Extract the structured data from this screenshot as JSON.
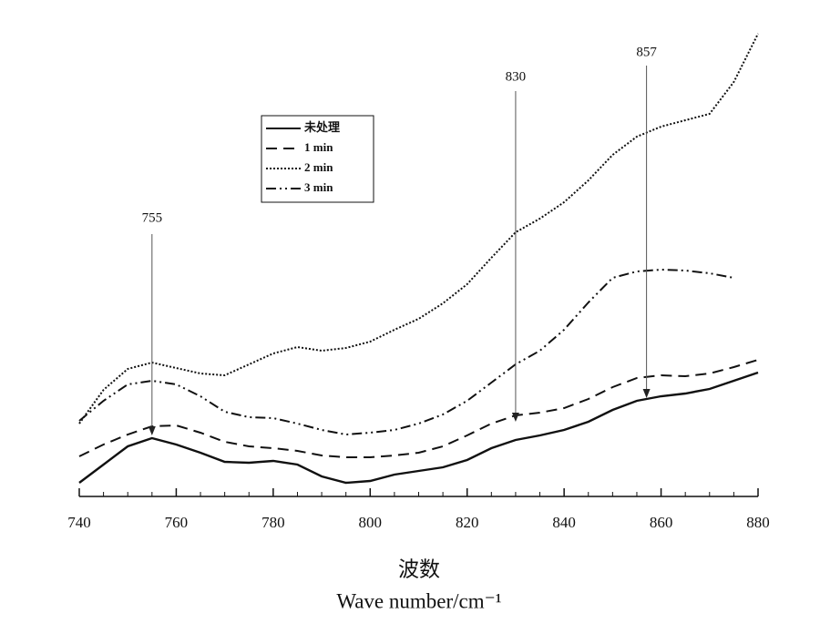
{
  "chart_data": {
    "type": "line",
    "xlabel": [
      "波数",
      "Wave number/cm⁻¹"
    ],
    "x": [
      740,
      745,
      750,
      755,
      760,
      765,
      770,
      775,
      780,
      785,
      790,
      795,
      800,
      805,
      810,
      815,
      820,
      825,
      830,
      835,
      840,
      845,
      850,
      855,
      860,
      865,
      870,
      875,
      880
    ],
    "xlim": [
      740,
      880
    ],
    "xticks": [
      740,
      760,
      780,
      800,
      820,
      840,
      860,
      880
    ],
    "ylim": [
      0,
      515
    ],
    "series": [
      {
        "name": "未处理",
        "color": "#111111",
        "line_style": "solid",
        "values": [
          15,
          35,
          55,
          64,
          57,
          48,
          38,
          37,
          39,
          35,
          22,
          15,
          17,
          24,
          28,
          32,
          40,
          53,
          62,
          67,
          73,
          82,
          95,
          105,
          110,
          113,
          118,
          127,
          136
        ]
      },
      {
        "name": "1 min",
        "color": "#111111",
        "line_style": "dashed",
        "values": [
          44,
          57,
          68,
          77,
          78,
          70,
          60,
          55,
          53,
          50,
          45,
          43,
          43,
          45,
          48,
          55,
          67,
          80,
          89,
          92,
          97,
          107,
          120,
          130,
          133,
          132,
          135,
          142,
          150
        ]
      },
      {
        "name": "2 min",
        "color": "#111111",
        "line_style": "dotted",
        "values": [
          80,
          117,
          140,
          147,
          141,
          135,
          133,
          145,
          157,
          164,
          160,
          163,
          170,
          183,
          195,
          212,
          233,
          262,
          290,
          305,
          323,
          347,
          375,
          395,
          406,
          413,
          420,
          455,
          508
        ]
      },
      {
        "name": "3 min",
        "color": "#111111",
        "line_style": "dashdot",
        "values": [
          83,
          105,
          123,
          127,
          123,
          110,
          93,
          87,
          86,
          80,
          73,
          68,
          70,
          73,
          80,
          90,
          105,
          125,
          145,
          160,
          183,
          213,
          240,
          247,
          249,
          248,
          245,
          240,
          null
        ]
      }
    ],
    "annotations": [
      {
        "text": "755",
        "x": 755
      },
      {
        "text": "830",
        "x": 830
      },
      {
        "text": "857",
        "x": 857
      }
    ]
  }
}
